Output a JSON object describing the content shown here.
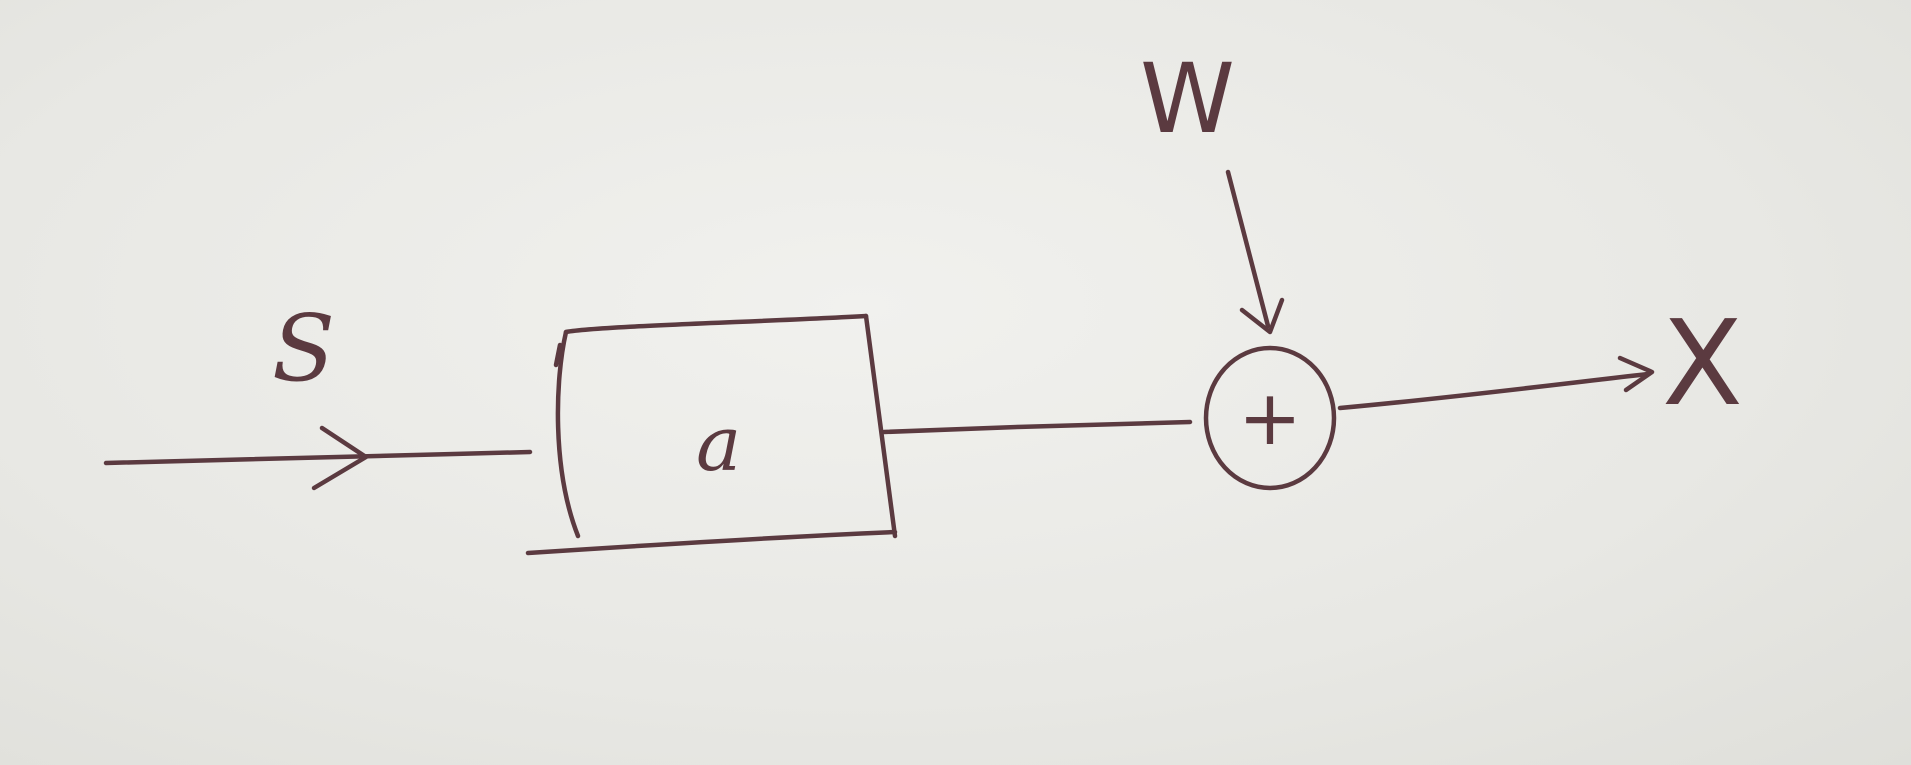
{
  "diagram": {
    "input_label": "S",
    "block_label": "a",
    "summing_symbol": "+",
    "disturbance_label": "W",
    "output_label": "X"
  },
  "colors": {
    "ink": "#5b3a40",
    "paper": "#ececE8"
  }
}
